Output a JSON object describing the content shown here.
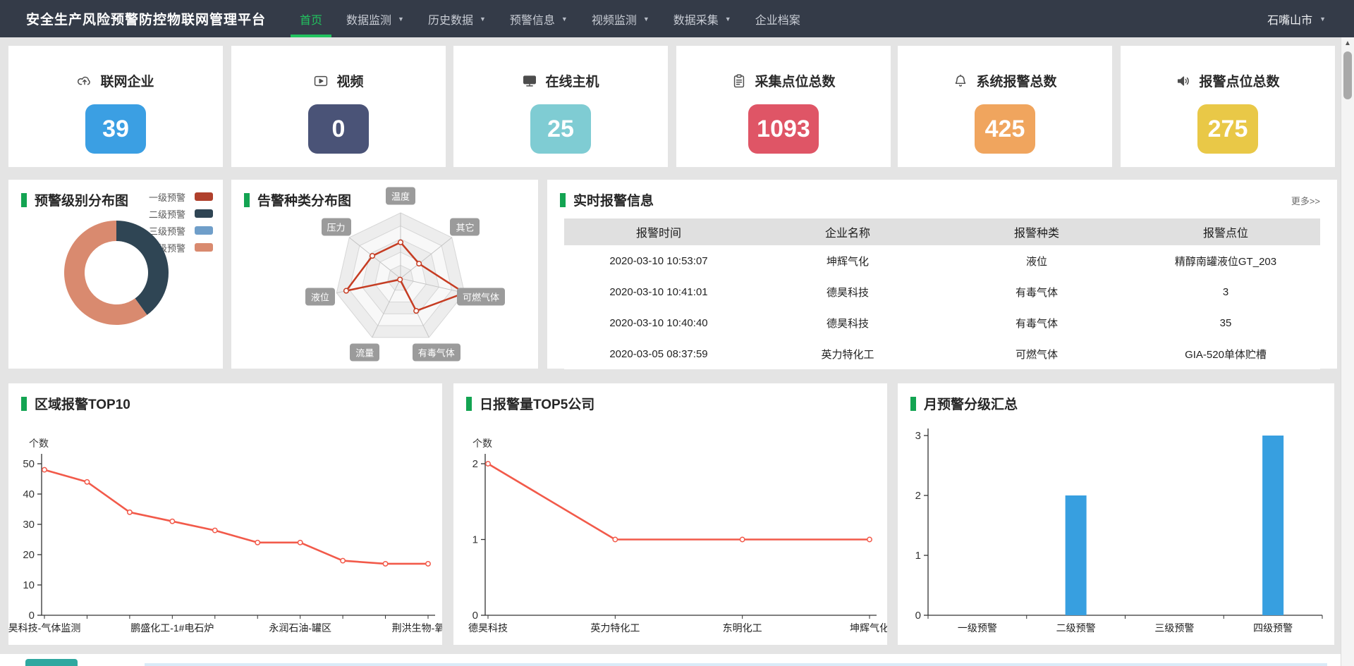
{
  "nav": {
    "title": "安全生产风险预警防控物联网管理平台",
    "items": [
      {
        "label": "首页",
        "active": true,
        "caret": false
      },
      {
        "label": "数据监测",
        "active": false,
        "caret": true
      },
      {
        "label": "历史数据",
        "active": false,
        "caret": true
      },
      {
        "label": "预警信息",
        "active": false,
        "caret": true
      },
      {
        "label": "视频监测",
        "active": false,
        "caret": true
      },
      {
        "label": "数据采集",
        "active": false,
        "caret": true
      },
      {
        "label": "企业档案",
        "active": false,
        "caret": false
      }
    ],
    "region": "石嘴山市",
    "active_color": "#21c35f"
  },
  "stats": [
    {
      "label": "联网企业",
      "value": "39",
      "color": "#3b9fe3",
      "icon": "cloud-upload-icon"
    },
    {
      "label": "视频",
      "value": "0",
      "color": "#4a5377",
      "icon": "video-play-icon"
    },
    {
      "label": "在线主机",
      "value": "25",
      "color": "#7fccd3",
      "icon": "monitor-icon"
    },
    {
      "label": "采集点位总数",
      "value": "1093",
      "color": "#df5566",
      "icon": "clipboard-icon"
    },
    {
      "label": "系统报警总数",
      "value": "425",
      "color": "#f0a55e",
      "icon": "bell-icon"
    },
    {
      "label": "报警点位总数",
      "value": "275",
      "color": "#e9c847",
      "icon": "speaker-icon"
    }
  ],
  "donut": {
    "title": "预警级别分布图",
    "chart": {
      "type": "pie",
      "items": [
        {
          "label": "一级预警",
          "value": 0,
          "color": "#b0402c"
        },
        {
          "label": "二级预警",
          "value": 2,
          "color": "#2f4554"
        },
        {
          "label": "三级预警",
          "value": 0,
          "color": "#6f9ec9"
        },
        {
          "label": "四级预警",
          "value": 3,
          "color": "#d98a6f"
        }
      ]
    }
  },
  "radar": {
    "title": "告警种类分布图",
    "chart": {
      "type": "radar",
      "axes": [
        "温度",
        "其它",
        "可燃气体",
        "有毒气体",
        "流量",
        "液位",
        "压力"
      ],
      "values": [
        55,
        36,
        100,
        55,
        2,
        85,
        55
      ],
      "max": 100,
      "line_color": "#c63c22"
    }
  },
  "alarms": {
    "title": "实时报警信息",
    "more": "更多>>",
    "columns": [
      "报警时间",
      "企业名称",
      "报警种类",
      "报警点位"
    ],
    "rows": [
      [
        "2020-03-10 10:53:07",
        "坤辉气化",
        "液位",
        "精醇南罐液位GT_203"
      ],
      [
        "2020-03-10 10:41:01",
        "德昊科技",
        "有毒气体",
        "3"
      ],
      [
        "2020-03-10 10:40:40",
        "德昊科技",
        "有毒气体",
        "35"
      ],
      [
        "2020-03-05 08:37:59",
        "英力特化工",
        "可燃气体",
        "GIA-520单体贮槽"
      ]
    ]
  },
  "top10": {
    "title": "区域报警TOP10",
    "chart": {
      "type": "line",
      "ylabel": "个数",
      "yticks": [
        0,
        10,
        20,
        30,
        40,
        50
      ],
      "ymax": 50,
      "values": [
        48,
        44,
        34,
        31,
        28,
        24,
        24,
        18,
        17,
        17
      ],
      "x_labels": [
        {
          "index": 0,
          "text": "昊科技-气体监测"
        },
        {
          "index": 3,
          "text": "鹏盛化工-1#电石炉"
        },
        {
          "index": 6,
          "text": "永润石油-罐区"
        },
        {
          "index": 9,
          "text": "荆洪生物-氧化反"
        }
      ],
      "line_color": "#f25a4a"
    }
  },
  "top5": {
    "title": "日报警量TOP5公司",
    "chart": {
      "type": "line",
      "ylabel": "个数",
      "yticks": [
        0,
        1,
        2
      ],
      "ymax": 2,
      "values": [
        2,
        1,
        1,
        1
      ],
      "x_labels": [
        {
          "index": 0,
          "text": "德昊科技"
        },
        {
          "index": 1,
          "text": "英力特化工"
        },
        {
          "index": 2,
          "text": "东明化工"
        },
        {
          "index": 3,
          "text": "坤辉气化"
        }
      ],
      "line_color": "#f25a4a"
    }
  },
  "monthly": {
    "title": "月预警分级汇总",
    "chart": {
      "type": "bar",
      "yticks": [
        0,
        1,
        2,
        3
      ],
      "ymax": 3,
      "categories": [
        "一级预警",
        "二级预警",
        "三级预警",
        "四级预警"
      ],
      "values": [
        0,
        2,
        0,
        3
      ],
      "bar_color": "#379fe0"
    }
  }
}
